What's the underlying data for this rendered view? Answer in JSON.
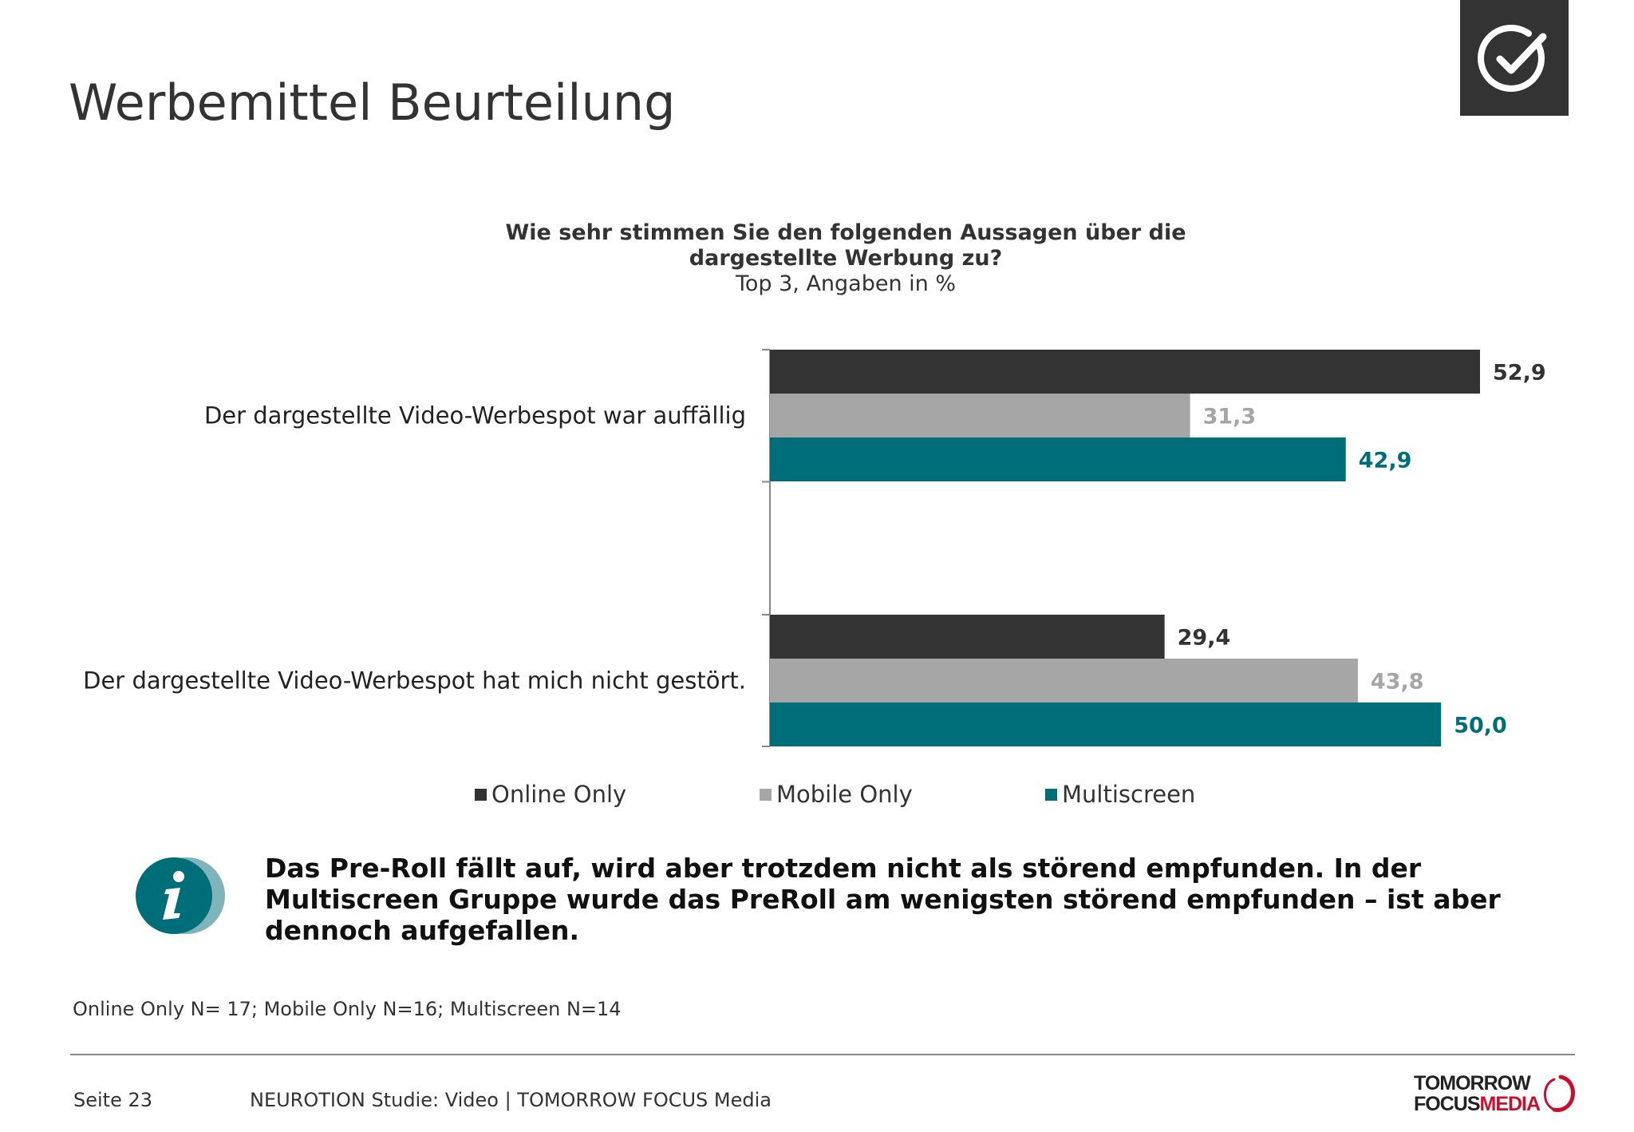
{
  "page": {
    "title": "Werbemittel Beurteilung",
    "badge_icon": "check-circle-icon",
    "insight_text": "Das Pre-Roll fällt auf, wird aber trotzdem nicht als störend empfunden. In der Multiscreen Gruppe wurde das PreRoll am wenigsten störend empfunden – ist aber dennoch aufgefallen.",
    "info_icon": "info-icon",
    "sample_note": "Online Only N= 17; Mobile Only N=16; Multiscreen N=14",
    "footer": {
      "page_label": "Seite 23",
      "study_label": "NEUROTION Studie: Video | TOMORROW FOCUS Media",
      "logo_line1": "TOMORROW",
      "logo_line2_a": "FOCUS",
      "logo_line2_b": "MEDIA"
    }
  },
  "chart_data": {
    "type": "bar",
    "orientation": "horizontal",
    "title": "Wie sehr stimmen Sie den folgenden Aussagen über die dargestellte Werbung zu?",
    "subtitle": "Top 3, Angaben in %",
    "categories": [
      "Der dargestellte Video-Werbespot war auffällig",
      "Der dargestellte Video-Werbespot hat mich nicht gestört."
    ],
    "series": [
      {
        "name": "Online Only",
        "color": "#333333",
        "label_color": "#333333",
        "values": [
          52.9,
          29.4
        ],
        "labels": [
          "52,9",
          "29,4"
        ]
      },
      {
        "name": "Mobile Only",
        "color": "#a6a6a6",
        "label_color": "#a6a6a6",
        "values": [
          31.3,
          43.8
        ],
        "labels": [
          "31,3",
          "43,8"
        ]
      },
      {
        "name": "Multiscreen",
        "color": "#006e78",
        "label_color": "#006e78",
        "values": [
          42.9,
          50.0
        ],
        "labels": [
          "42,9",
          "50,0"
        ]
      }
    ],
    "xlim": [
      0,
      60
    ],
    "grid": false,
    "legend_position": "bottom"
  }
}
